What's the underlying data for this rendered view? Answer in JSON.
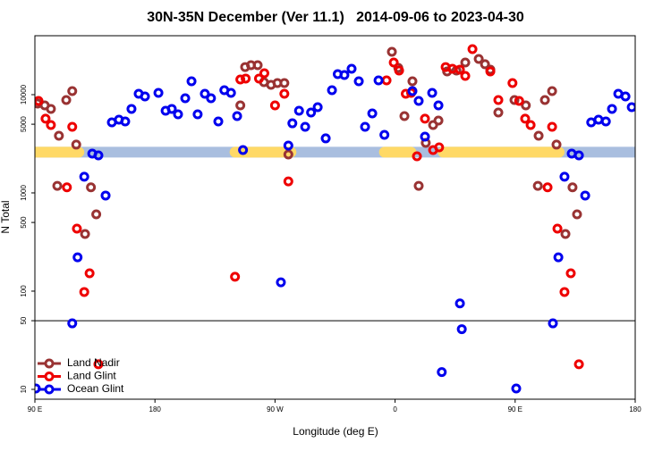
{
  "chart_data": {
    "type": "scatter",
    "title": "30N-35N December (Ver 11.1)   2014-09-06 to 2023-04-30",
    "x_label": "Longitude (deg E)",
    "y_label": "N Total",
    "ylog": true,
    "xlim": [
      90,
      540
    ],
    "xticks": [
      {
        "value": 90,
        "label": "90 E"
      },
      180,
      {
        "value": 270,
        "label": "90 W"
      },
      {
        "value": 360,
        "label": "0"
      },
      {
        "value": 450,
        "label": "90 E"
      },
      {
        "value": 540,
        "label": "180"
      }
    ],
    "ylim": [
      7.94,
      39800
    ],
    "yticks": [
      10,
      50,
      100,
      500,
      1000,
      5000,
      10000
    ],
    "hline": 50,
    "legend": "lower left",
    "surface_band": {
      "y": 2600,
      "ocean_color": "#a9bedf",
      "land_color": "#ffd966",
      "land": [
        [
          90,
          123
        ],
        [
          240,
          282
        ],
        [
          352,
          372
        ],
        [
          396,
          483
        ]
      ]
    },
    "series": [
      {
        "name": "Land Nadir",
        "color": "#993333",
        "x": [
          92,
          97.4,
          102,
          108,
          113.5,
          118,
          121,
          106.8,
          132,
          136,
          127.6,
          247.6,
          252,
          257,
          261.7,
          267,
          271.8,
          277,
          244,
          280,
          357.6,
          362.4,
          373,
          367,
          377.7,
          383,
          388.5,
          392.5,
          399,
          406,
          412.6,
          422.7,
          427.4,
          431.4,
          437.4,
          449.5,
          458,
          467.6,
          472.3,
          477.7,
          481,
          467,
          493,
          496.4,
          487.7
        ],
        "values": [
          8110,
          7780,
          7160,
          3820,
          8820,
          10870,
          3100,
          1180,
          1140,
          605,
          382,
          19100,
          19950,
          19950,
          13400,
          12590,
          13120,
          13120,
          7780,
          2460,
          27300,
          18740,
          13680,
          6050,
          1180,
          3230,
          4910,
          5450,
          17230,
          17600,
          21250,
          23100,
          20400,
          17980,
          6580,
          8820,
          7780,
          3820,
          8820,
          10870,
          3100,
          1180,
          1140,
          605,
          382
        ]
      },
      {
        "name": "Land Glint",
        "color": "#ee0000",
        "x": [
          92.7,
          98,
          102,
          114,
          118,
          121.5,
          127,
          131,
          137.6,
          240,
          244,
          248,
          258,
          262,
          270,
          277,
          280,
          353.6,
          359,
          363,
          368,
          372,
          376.4,
          382.4,
          388.5,
          393,
          397.9,
          403,
          408.6,
          412.6,
          418,
          431.4,
          437.4,
          448,
          453,
          457.5,
          461.6,
          474.3,
          477.7,
          481.7,
          487,
          491.7,
          497.8
        ],
        "values": [
          8630,
          5690,
          4910,
          1140,
          4710,
          433,
          98,
          152,
          18,
          140,
          14280,
          14590,
          14590,
          16520,
          7780,
          10200,
          1310,
          13970,
          21250,
          17600,
          10200,
          10420,
          2360,
          5690,
          2730,
          2910,
          19100,
          18350,
          17980,
          15520,
          29100,
          17230,
          8820,
          13120,
          8630,
          5690,
          4910,
          1140,
          4710,
          433,
          98,
          152,
          18
        ]
      },
      {
        "name": "Ocean Glint",
        "color": "#0000ee",
        "x": [
          90.7,
          118,
          122,
          127,
          133,
          137.6,
          143,
          147.7,
          153,
          157.7,
          162.4,
          167.8,
          172.5,
          182.6,
          188,
          192.6,
          197.3,
          202.7,
          207.4,
          212,
          217.4,
          222,
          227.5,
          232,
          237,
          241.6,
          246,
          274.4,
          280,
          283,
          288,
          292.6,
          297,
          302,
          308,
          312.7,
          317,
          322,
          327.4,
          332.8,
          337.5,
          342.9,
          347.6,
          352,
          373,
          377.7,
          382.4,
          387.8,
          392.5,
          395,
          408.6,
          410,
          450.8,
          478.3,
          482.4,
          487,
          492.4,
          497.8,
          502.5,
          507,
          512.5,
          518,
          522.6,
          527.3,
          532.7,
          537.4
        ],
        "values": [
          10.2,
          47,
          221,
          1460,
          2510,
          2410,
          940,
          5220,
          5560,
          5340,
          7160,
          10200,
          9590,
          10420,
          6860,
          7160,
          6310,
          9200,
          13680,
          6310,
          10200,
          9200,
          5340,
          11100,
          10420,
          6050,
          2730,
          123,
          3030,
          5110,
          6860,
          4710,
          6580,
          7460,
          3590,
          11100,
          16180,
          15850,
          18350,
          13680,
          4710,
          6440,
          13970,
          3900,
          10870,
          8630,
          3740,
          10420,
          7780,
          15,
          75,
          41,
          10.2,
          47,
          221,
          1460,
          2510,
          2410,
          940,
          5220,
          5560,
          5340,
          7160,
          10200,
          9590,
          7460
        ]
      }
    ]
  }
}
